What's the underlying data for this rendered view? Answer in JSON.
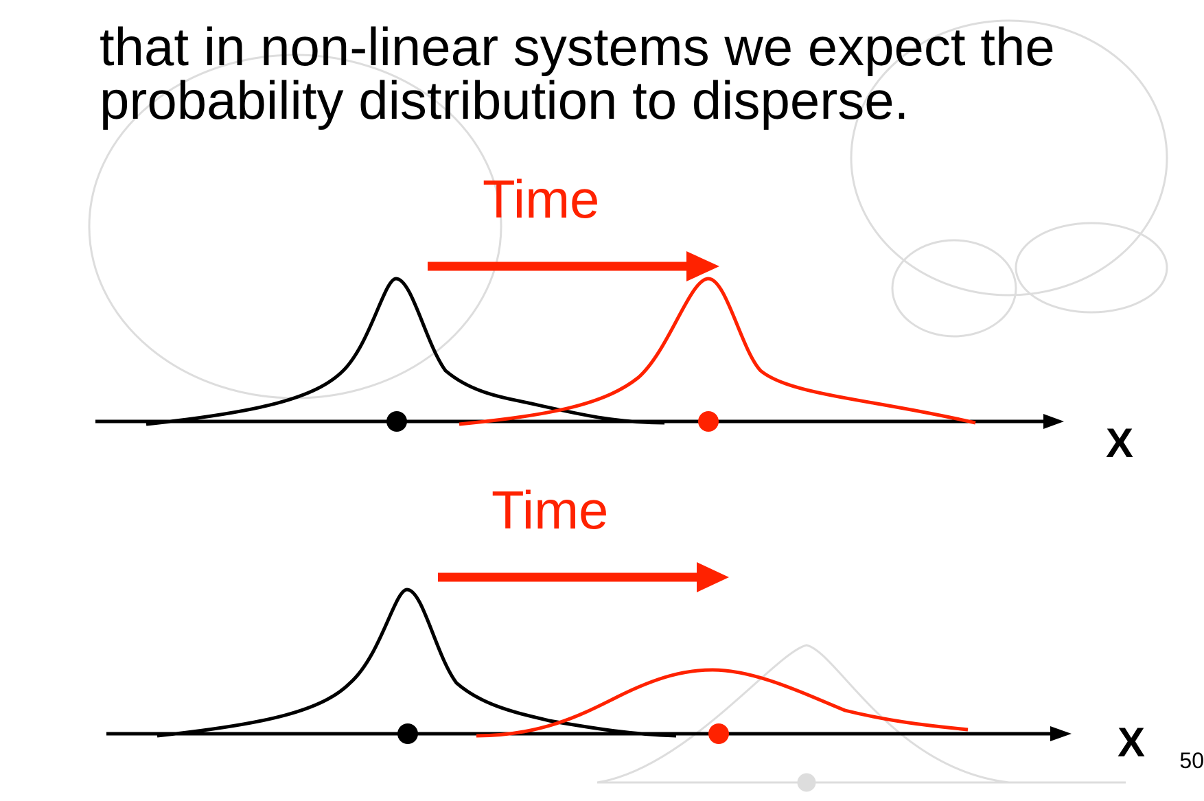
{
  "text": {
    "line1": "that in non-linear systems we expect the",
    "line2": "probability distribution to disperse."
  },
  "top_panel": {
    "arrow_label": "Time",
    "axis_label": "X"
  },
  "bottom_panel": {
    "arrow_label": "Time",
    "axis_label": "X"
  },
  "page_number": "50"
}
